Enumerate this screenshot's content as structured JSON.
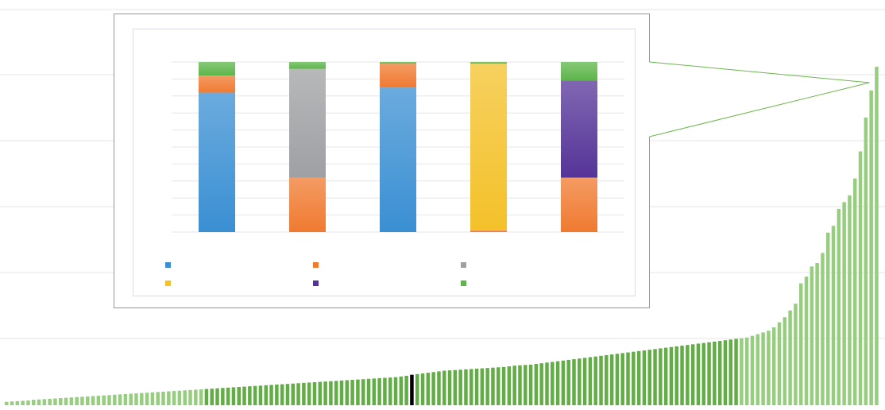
{
  "colors": {
    "main_bar_dark": "#62ad45",
    "main_bar_light": "#96cd7e",
    "highlight_bar": "#000000",
    "callout_border": "#6cb84c",
    "gridline": "#e4e4e4",
    "series": [
      "#3a8fd3",
      "#f07a30",
      "#9ea0a3",
      "#f4c12a",
      "#553498",
      "#5db54a"
    ]
  },
  "chart_data": [
    {
      "type": "bar",
      "title": "",
      "xlabel": "",
      "ylabel": "",
      "ylim": [
        0,
        1.05
      ],
      "grid": true,
      "highlight_index": 75,
      "values": [
        0.01,
        0.011,
        0.012,
        0.013,
        0.014,
        0.016,
        0.017,
        0.018,
        0.019,
        0.02,
        0.021,
        0.022,
        0.023,
        0.024,
        0.025,
        0.026,
        0.027,
        0.028,
        0.029,
        0.03,
        0.031,
        0.032,
        0.033,
        0.034,
        0.035,
        0.036,
        0.037,
        0.038,
        0.039,
        0.04,
        0.041,
        0.042,
        0.043,
        0.044,
        0.045,
        0.046,
        0.047,
        0.048,
        0.049,
        0.05,
        0.051,
        0.052,
        0.053,
        0.054,
        0.055,
        0.056,
        0.057,
        0.058,
        0.059,
        0.06,
        0.061,
        0.062,
        0.063,
        0.064,
        0.065,
        0.066,
        0.067,
        0.068,
        0.069,
        0.07,
        0.071,
        0.072,
        0.073,
        0.074,
        0.075,
        0.076,
        0.077,
        0.078,
        0.079,
        0.08,
        0.081,
        0.082,
        0.083,
        0.085,
        0.087,
        0.09,
        0.092,
        0.094,
        0.096,
        0.098,
        0.1,
        0.102,
        0.103,
        0.104,
        0.105,
        0.106,
        0.107,
        0.108,
        0.109,
        0.11,
        0.111,
        0.112,
        0.113,
        0.115,
        0.117,
        0.118,
        0.119,
        0.12,
        0.122,
        0.124,
        0.126,
        0.128,
        0.13,
        0.132,
        0.134,
        0.136,
        0.138,
        0.14,
        0.142,
        0.144,
        0.146,
        0.148,
        0.15,
        0.152,
        0.154,
        0.156,
        0.158,
        0.16,
        0.162,
        0.164,
        0.166,
        0.168,
        0.17,
        0.172,
        0.174,
        0.176,
        0.178,
        0.18,
        0.182,
        0.184,
        0.186,
        0.188,
        0.19,
        0.192,
        0.194,
        0.196,
        0.198,
        0.2,
        0.205,
        0.21,
        0.215,
        0.22,
        0.23,
        0.245,
        0.26,
        0.28,
        0.3,
        0.36,
        0.38,
        0.41,
        0.42,
        0.45,
        0.51,
        0.53,
        0.58,
        0.6,
        0.62,
        0.67,
        0.75,
        0.85,
        0.93,
        1.0
      ]
    },
    {
      "type": "bar",
      "stacked": true,
      "title": "",
      "xlabel": "",
      "ylabel": "",
      "ylim": [
        0,
        1
      ],
      "grid": true,
      "legend_position": "bottom",
      "categories": [
        "",
        "",
        "",
        "",
        ""
      ],
      "series": [
        {
          "color": "#3a8fd3",
          "values": [
            0.82,
            0.0,
            0.85,
            0.0,
            0.0
          ]
        },
        {
          "color": "#f07a30",
          "values": [
            0.1,
            0.32,
            0.14,
            0.01,
            0.32
          ]
        },
        {
          "color": "#9ea0a3",
          "values": [
            0.0,
            0.64,
            0.0,
            0.0,
            0.0
          ]
        },
        {
          "color": "#f4c12a",
          "values": [
            0.0,
            0.0,
            0.0,
            0.98,
            0.0
          ]
        },
        {
          "color": "#553498",
          "values": [
            0.0,
            0.0,
            0.0,
            0.0,
            0.57
          ]
        },
        {
          "color": "#5db54a",
          "values": [
            0.08,
            0.04,
            0.01,
            0.01,
            0.11
          ]
        }
      ]
    }
  ]
}
